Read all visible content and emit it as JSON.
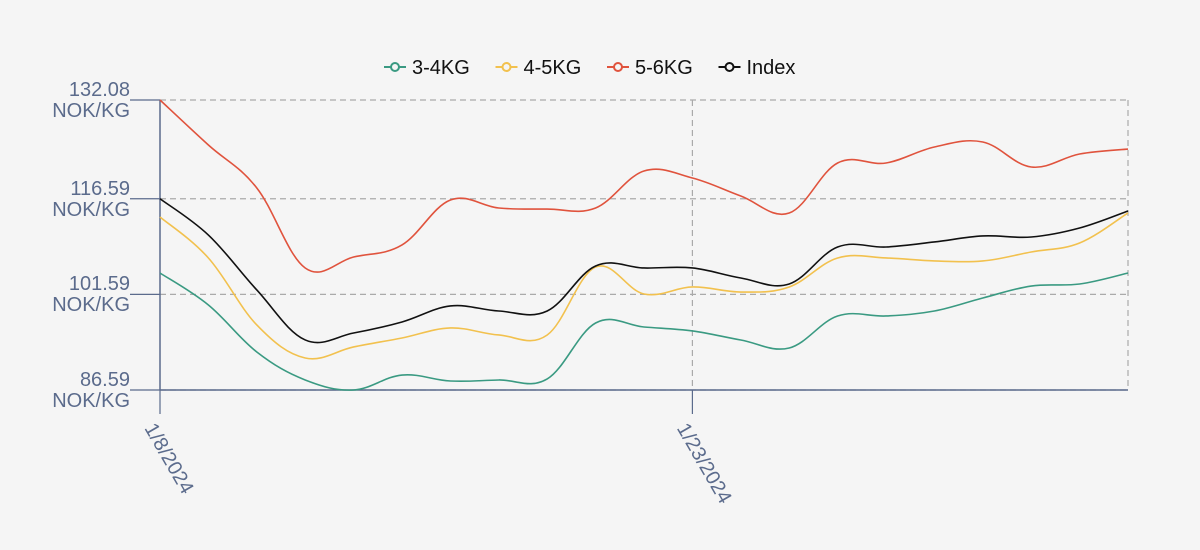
{
  "chart_data": {
    "type": "line",
    "categories": [
      "1/8/2024",
      null,
      null,
      null,
      null,
      null,
      null,
      null,
      null,
      null,
      null,
      "1/23/2024",
      null,
      null,
      null,
      null,
      null,
      null,
      null,
      null,
      null
    ],
    "series": [
      {
        "name": "3-4KG",
        "color": "#3a9a82",
        "values": [
          104.94,
          99.92,
          92.55,
          88.16,
          86.59,
          88.94,
          88.0,
          88.16,
          88.32,
          97.1,
          96.47,
          95.85,
          94.43,
          93.18,
          98.2,
          98.2,
          98.98,
          101.02,
          102.9,
          103.22,
          104.94
        ]
      },
      {
        "name": "4-5KG",
        "color": "#f2c14e",
        "values": [
          113.73,
          107.3,
          96.79,
          91.61,
          93.34,
          94.75,
          96.32,
          95.22,
          95.22,
          105.88,
          101.65,
          102.75,
          101.96,
          102.75,
          107.3,
          107.3,
          106.83,
          106.83,
          108.24,
          109.65,
          114.36
        ]
      },
      {
        "name": "5-6KG",
        "color": "#e0533d",
        "values": [
          132.08,
          125.02,
          118.28,
          105.73,
          107.45,
          109.34,
          116.39,
          115.14,
          114.98,
          115.14,
          120.94,
          119.84,
          117.02,
          114.35,
          122.2,
          122.2,
          124.71,
          125.49,
          121.57,
          123.61,
          124.39
        ]
      },
      {
        "name": "Index",
        "color": "#111111",
        "values": [
          116.59,
          110.9,
          102.28,
          94.44,
          95.53,
          97.26,
          99.77,
          98.98,
          98.98,
          106.04,
          105.73,
          105.73,
          104.16,
          103.22,
          109.02,
          109.02,
          109.81,
          110.75,
          110.59,
          112.0,
          114.67
        ]
      }
    ],
    "ylim": [
      86.59,
      132.08
    ],
    "yticks": [
      {
        "value": 86.59,
        "label": "86.59 NOK/KG"
      },
      {
        "value": 101.59,
        "label": "101.59 NOK/KG"
      },
      {
        "value": 116.59,
        "label": "116.59 NOK/KG"
      },
      {
        "value": 132.08,
        "label": "132.08 NOK/KG"
      }
    ],
    "grid": true,
    "legend": "top"
  }
}
